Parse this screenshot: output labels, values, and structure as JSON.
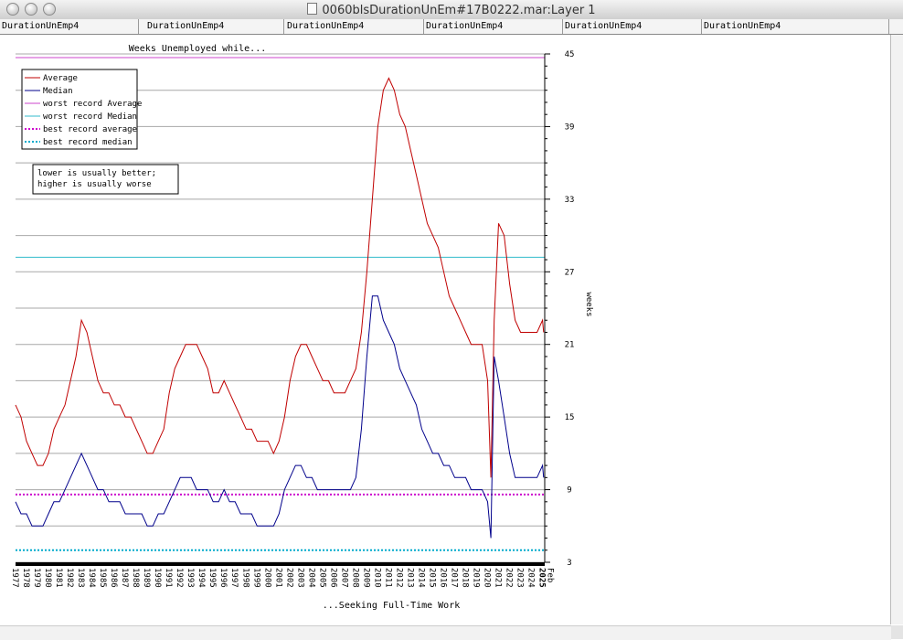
{
  "window": {
    "title": "0060blsDurationUnEm#17B0222.mar:Layer 1"
  },
  "tabs": [
    "DurationUnEmp4",
    "DurationUnEmp4",
    "DurationUnEmp4",
    "DurationUnEmp4",
    "DurationUnEmp4",
    "DurationUnEmp4"
  ],
  "colors": {
    "average": "#c00000",
    "median": "#00008b",
    "worst_average": "#cc44cc",
    "worst_median": "#33bbcc",
    "best_average": "#cc00cc",
    "best_median": "#00aacc"
  },
  "chart_data": {
    "type": "line",
    "title": "Weeks Unemployed while...",
    "xlabel": "...Seeking Full-Time Work",
    "ylabel": "weeks",
    "ylim": [
      3,
      45
    ],
    "yticks": [
      3,
      9,
      15,
      21,
      27,
      33,
      39,
      45
    ],
    "xlim": [
      1977.0,
      2025.2
    ],
    "x_ticks": [
      "1977",
      "1978",
      "1979",
      "1980",
      "1981",
      "1982",
      "1983",
      "1984",
      "1985",
      "1986",
      "1987",
      "1988",
      "1989",
      "1990",
      "1991",
      "1992",
      "1993",
      "1994",
      "1995",
      "1996",
      "1997",
      "1998",
      "1999",
      "2000",
      "2001",
      "2002",
      "2003",
      "2004",
      "2005",
      "2006",
      "2007",
      "2008",
      "2009",
      "2010",
      "2011",
      "2012",
      "2013",
      "2014",
      "2015",
      "2016",
      "2017",
      "2018",
      "2019",
      "2020",
      "2021",
      "2022",
      "2023",
      "2024",
      "2025"
    ],
    "x_end_label": "Feb",
    "grid": true,
    "legend_position": "top-left",
    "note": [
      "lower is usually better;",
      "higher is usually worse"
    ],
    "series": [
      {
        "name": "Average",
        "x": [
          1977.0,
          1977.5,
          1978.0,
          1978.5,
          1979.0,
          1979.5,
          1980.0,
          1980.5,
          1981.0,
          1981.5,
          1982.0,
          1982.5,
          1983.0,
          1983.5,
          1984.0,
          1984.5,
          1985.0,
          1985.5,
          1986.0,
          1986.5,
          1987.0,
          1987.5,
          1988.0,
          1988.5,
          1989.0,
          1989.5,
          1990.0,
          1990.5,
          1991.0,
          1991.5,
          1992.0,
          1992.5,
          1993.0,
          1993.5,
          1994.0,
          1994.5,
          1995.0,
          1995.5,
          1996.0,
          1996.5,
          1997.0,
          1997.5,
          1998.0,
          1998.5,
          1999.0,
          1999.5,
          2000.0,
          2000.5,
          2001.0,
          2001.5,
          2002.0,
          2002.5,
          2003.0,
          2003.5,
          2004.0,
          2004.5,
          2005.0,
          2005.5,
          2006.0,
          2006.5,
          2007.0,
          2007.5,
          2008.0,
          2008.5,
          2009.0,
          2009.5,
          2010.0,
          2010.5,
          2011.0,
          2011.5,
          2012.0,
          2012.5,
          2013.0,
          2013.5,
          2014.0,
          2014.5,
          2015.0,
          2015.5,
          2016.0,
          2016.5,
          2017.0,
          2017.5,
          2018.0,
          2018.5,
          2019.0,
          2019.5,
          2020.0,
          2020.3,
          2020.6,
          2021.0,
          2021.5,
          2022.0,
          2022.5,
          2023.0,
          2023.5,
          2024.0,
          2024.5,
          2025.0,
          2025.1
        ],
        "values": [
          16,
          15,
          13,
          12,
          11,
          11,
          12,
          14,
          15,
          16,
          18,
          20,
          23,
          22,
          20,
          18,
          17,
          17,
          16,
          16,
          15,
          15,
          14,
          13,
          12,
          12,
          13,
          14,
          17,
          19,
          20,
          21,
          21,
          21,
          20,
          19,
          17,
          17,
          18,
          17,
          16,
          15,
          14,
          14,
          13,
          13,
          13,
          12,
          13,
          15,
          18,
          20,
          21,
          21,
          20,
          19,
          18,
          18,
          17,
          17,
          17,
          18,
          19,
          22,
          27,
          33,
          39,
          42,
          43,
          42,
          40,
          39,
          37,
          35,
          33,
          31,
          30,
          29,
          27,
          25,
          24,
          23,
          22,
          21,
          21,
          21,
          18,
          10,
          23,
          31,
          30,
          26,
          23,
          22,
          22,
          22,
          22,
          23,
          22
        ]
      },
      {
        "name": "Median",
        "x": [
          1977.0,
          1977.5,
          1978.0,
          1978.5,
          1979.0,
          1979.5,
          1980.0,
          1980.5,
          1981.0,
          1981.5,
          1982.0,
          1982.5,
          1983.0,
          1983.5,
          1984.0,
          1984.5,
          1985.0,
          1985.5,
          1986.0,
          1986.5,
          1987.0,
          1987.5,
          1988.0,
          1988.5,
          1989.0,
          1989.5,
          1990.0,
          1990.5,
          1991.0,
          1991.5,
          1992.0,
          1992.5,
          1993.0,
          1993.5,
          1994.0,
          1994.5,
          1995.0,
          1995.5,
          1996.0,
          1996.5,
          1997.0,
          1997.5,
          1998.0,
          1998.5,
          1999.0,
          1999.5,
          2000.0,
          2000.5,
          2001.0,
          2001.5,
          2002.0,
          2002.5,
          2003.0,
          2003.5,
          2004.0,
          2004.5,
          2005.0,
          2005.5,
          2006.0,
          2006.5,
          2007.0,
          2007.5,
          2008.0,
          2008.5,
          2009.0,
          2009.5,
          2010.0,
          2010.5,
          2011.0,
          2011.5,
          2012.0,
          2012.5,
          2013.0,
          2013.5,
          2014.0,
          2014.5,
          2015.0,
          2015.5,
          2016.0,
          2016.5,
          2017.0,
          2017.5,
          2018.0,
          2018.5,
          2019.0,
          2019.5,
          2020.0,
          2020.3,
          2020.6,
          2021.0,
          2021.5,
          2022.0,
          2022.5,
          2023.0,
          2023.5,
          2024.0,
          2024.5,
          2025.0,
          2025.1
        ],
        "values": [
          8,
          7,
          7,
          6,
          6,
          6,
          7,
          8,
          8,
          9,
          10,
          11,
          12,
          11,
          10,
          9,
          9,
          8,
          8,
          8,
          7,
          7,
          7,
          7,
          6,
          6,
          7,
          7,
          8,
          9,
          10,
          10,
          10,
          9,
          9,
          9,
          8,
          8,
          9,
          8,
          8,
          7,
          7,
          7,
          6,
          6,
          6,
          6,
          7,
          9,
          10,
          11,
          11,
          10,
          10,
          9,
          9,
          9,
          9,
          9,
          9,
          9,
          10,
          14,
          20,
          25,
          25,
          23,
          22,
          21,
          19,
          18,
          17,
          16,
          14,
          13,
          12,
          12,
          11,
          11,
          10,
          10,
          10,
          9,
          9,
          9,
          8,
          5,
          20,
          18,
          15,
          12,
          10,
          10,
          10,
          10,
          10,
          11,
          10
        ]
      },
      {
        "name": "worst record Average",
        "values": [
          44.7
        ]
      },
      {
        "name": "worst record Median",
        "values": [
          28.2
        ]
      },
      {
        "name": "best record average",
        "values": [
          8.6
        ]
      },
      {
        "name": "best record median",
        "values": [
          4.0
        ]
      }
    ]
  }
}
